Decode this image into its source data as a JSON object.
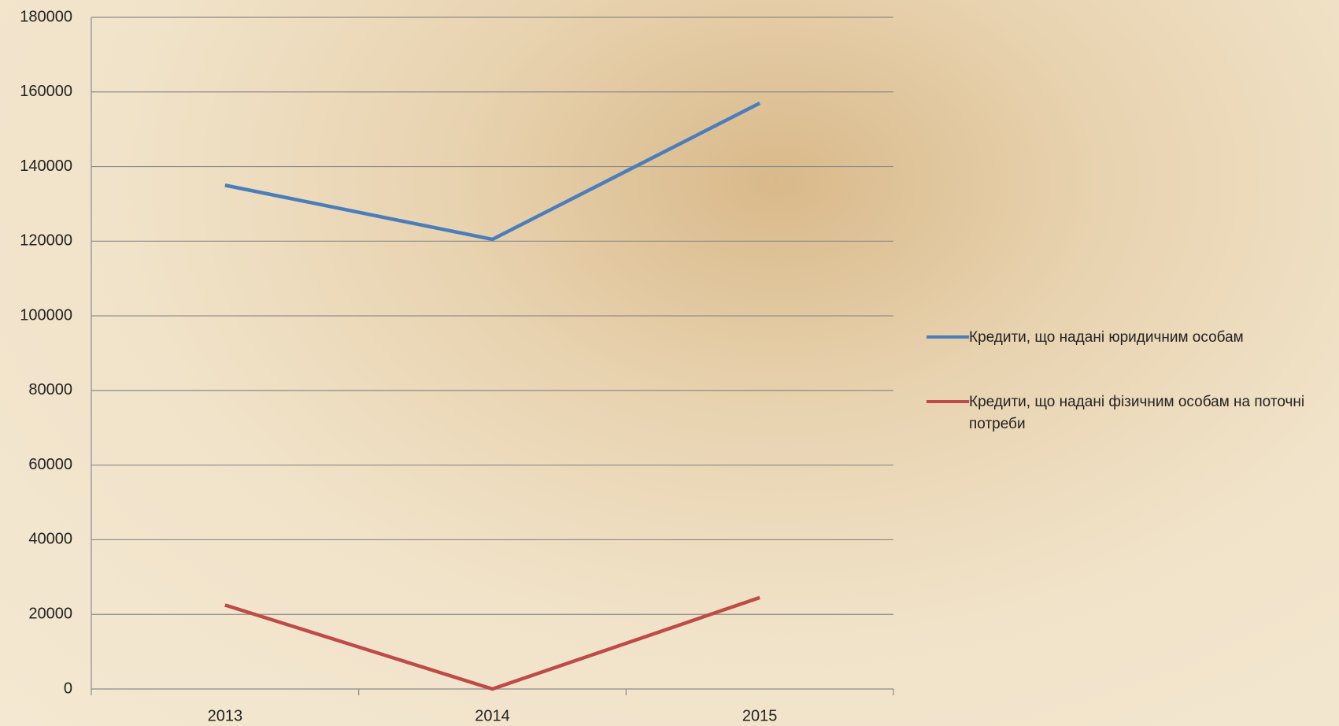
{
  "chart_data": {
    "type": "line",
    "categories": [
      "2013",
      "2014",
      "2015"
    ],
    "series": [
      {
        "name": "Кредити, що надані юридичним особам",
        "color": "#4a7ebb",
        "values": [
          135000,
          120500,
          157000
        ]
      },
      {
        "name": "Кредити, що надані фізичним особам на поточні потреби",
        "color": "#be4b48",
        "values": [
          22500,
          0,
          24500
        ]
      }
    ],
    "ylim": [
      0,
      180000
    ],
    "yticks": [
      0,
      20000,
      40000,
      60000,
      80000,
      100000,
      120000,
      140000,
      160000,
      180000
    ],
    "grid": true,
    "legend": "right"
  }
}
